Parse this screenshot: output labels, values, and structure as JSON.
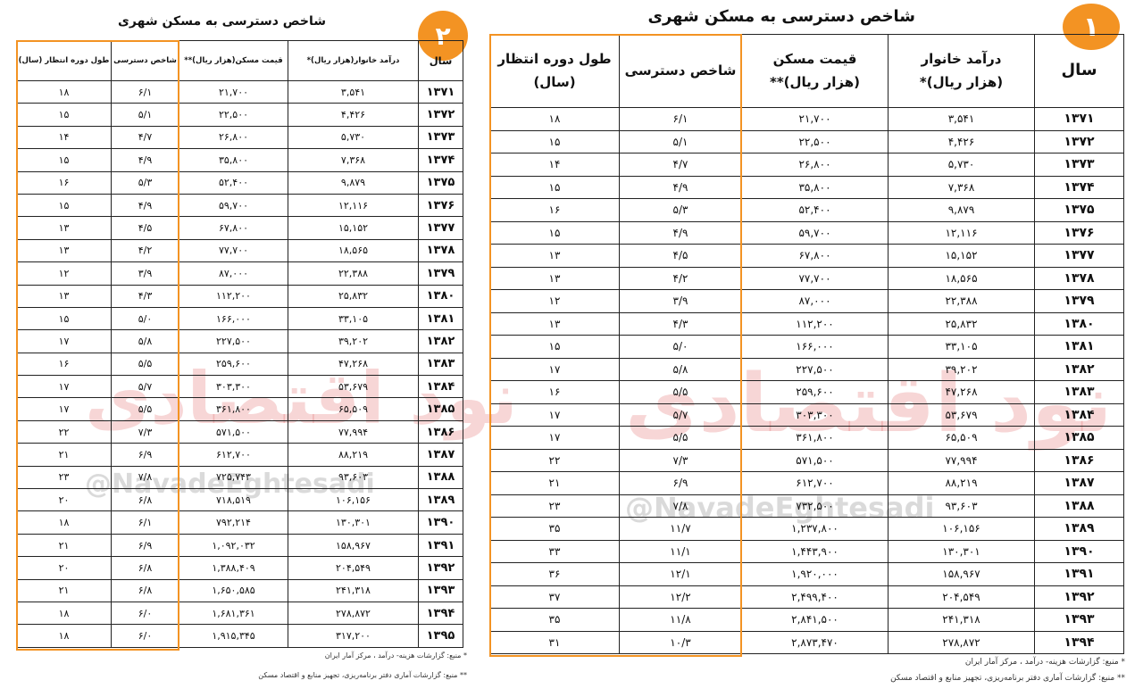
{
  "left": {
    "badge": "۲",
    "title": "شاخص دسترسی به مسکن شهری",
    "table": {
      "headers": [
        "سال",
        "درآمد خانوار(هزار ریال)*",
        "قیمت مسکن(هزار ریال)**",
        "شاخص دسترسی",
        "طول دوره انتظار (سال)"
      ],
      "rows": [
        [
          "۱۳۷۱",
          "۳,۵۴۱",
          "۲۱,۷۰۰",
          "۶/۱",
          "۱۸"
        ],
        [
          "۱۳۷۲",
          "۴,۴۲۶",
          "۲۲,۵۰۰",
          "۵/۱",
          "۱۵"
        ],
        [
          "۱۳۷۳",
          "۵,۷۳۰",
          "۲۶,۸۰۰",
          "۴/۷",
          "۱۴"
        ],
        [
          "۱۳۷۴",
          "۷,۳۶۸",
          "۳۵,۸۰۰",
          "۴/۹",
          "۱۵"
        ],
        [
          "۱۳۷۵",
          "۹,۸۷۹",
          "۵۲,۴۰۰",
          "۵/۳",
          "۱۶"
        ],
        [
          "۱۳۷۶",
          "۱۲,۱۱۶",
          "۵۹,۷۰۰",
          "۴/۹",
          "۱۵"
        ],
        [
          "۱۳۷۷",
          "۱۵,۱۵۲",
          "۶۷,۸۰۰",
          "۴/۵",
          "۱۳"
        ],
        [
          "۱۳۷۸",
          "۱۸,۵۶۵",
          "۷۷,۷۰۰",
          "۴/۲",
          "۱۳"
        ],
        [
          "۱۳۷۹",
          "۲۲,۳۸۸",
          "۸۷,۰۰۰",
          "۳/۹",
          "۱۲"
        ],
        [
          "۱۳۸۰",
          "۲۵,۸۳۲",
          "۱۱۲,۲۰۰",
          "۴/۳",
          "۱۳"
        ],
        [
          "۱۳۸۱",
          "۳۳,۱۰۵",
          "۱۶۶,۰۰۰",
          "۵/۰",
          "۱۵"
        ],
        [
          "۱۳۸۲",
          "۳۹,۲۰۲",
          "۲۲۷,۵۰۰",
          "۵/۸",
          "۱۷"
        ],
        [
          "۱۳۸۳",
          "۴۷,۲۶۸",
          "۲۵۹,۶۰۰",
          "۵/۵",
          "۱۶"
        ],
        [
          "۱۳۸۴",
          "۵۳,۶۷۹",
          "۳۰۳,۳۰۰",
          "۵/۷",
          "۱۷"
        ],
        [
          "۱۳۸۵",
          "۶۵,۵۰۹",
          "۳۶۱,۸۰۰",
          "۵/۵",
          "۱۷"
        ],
        [
          "۱۳۸۶",
          "۷۷,۹۹۴",
          "۵۷۱,۵۰۰",
          "۷/۳",
          "۲۲"
        ],
        [
          "۱۳۸۷",
          "۸۸,۲۱۹",
          "۶۱۲,۷۰۰",
          "۶/۹",
          "۲۱"
        ],
        [
          "۱۳۸۸",
          "۹۳,۶۰۳",
          "۷۲۵,۷۴۳",
          "۷/۸",
          "۲۳"
        ],
        [
          "۱۳۸۹",
          "۱۰۶,۱۵۶",
          "۷۱۸,۵۱۹",
          "۶/۸",
          "۲۰"
        ],
        [
          "۱۳۹۰",
          "۱۳۰,۳۰۱",
          "۷۹۲,۲۱۴",
          "۶/۱",
          "۱۸"
        ],
        [
          "۱۳۹۱",
          "۱۵۸,۹۶۷",
          "۱,۰۹۲,۰۳۲",
          "۶/۹",
          "۲۱"
        ],
        [
          "۱۳۹۲",
          "۲۰۴,۵۴۹",
          "۱,۳۸۸,۴۰۹",
          "۶/۸",
          "۲۰"
        ],
        [
          "۱۳۹۳",
          "۲۴۱,۳۱۸",
          "۱,۶۵۰,۵۸۵",
          "۶/۸",
          "۲۱"
        ],
        [
          "۱۳۹۴",
          "۲۷۸,۸۷۲",
          "۱,۶۸۱,۳۶۱",
          "۶/۰",
          "۱۸"
        ],
        [
          "۱۳۹۵",
          "۳۱۷,۲۰۰",
          "۱,۹۱۵,۳۴۵",
          "۶/۰",
          "۱۸"
        ]
      ]
    },
    "notes": [
      "* منبع: گزارشات هزینه- درآمد ، مرکز آمار ایران",
      "** منبع: گزارشات آماری دفتر برنامه‌ریزی، تجهیز منابع و اقتصاد مسکن"
    ],
    "watermark": "@NavadeEghtesadi",
    "logo": "نود اقتصادی"
  },
  "right": {
    "badge": "۱",
    "title": "شاخص دسترسی به مسکن شهری",
    "table": {
      "headers": [
        [
          "سال"
        ],
        [
          "درآمد خانوار",
          "(هزار ریال)*"
        ],
        [
          "قیمت مسکن",
          "(هزار ریال)**"
        ],
        [
          "شاخص دسترسی"
        ],
        [
          "طول دوره انتظار",
          "(سال)"
        ]
      ],
      "rows": [
        [
          "۱۳۷۱",
          "۳,۵۴۱",
          "۲۱,۷۰۰",
          "۶/۱",
          "۱۸"
        ],
        [
          "۱۳۷۲",
          "۴,۴۲۶",
          "۲۲,۵۰۰",
          "۵/۱",
          "۱۵"
        ],
        [
          "۱۳۷۳",
          "۵,۷۳۰",
          "۲۶,۸۰۰",
          "۴/۷",
          "۱۴"
        ],
        [
          "۱۳۷۴",
          "۷,۳۶۸",
          "۳۵,۸۰۰",
          "۴/۹",
          "۱۵"
        ],
        [
          "۱۳۷۵",
          "۹,۸۷۹",
          "۵۲,۴۰۰",
          "۵/۳",
          "۱۶"
        ],
        [
          "۱۳۷۶",
          "۱۲,۱۱۶",
          "۵۹,۷۰۰",
          "۴/۹",
          "۱۵"
        ],
        [
          "۱۳۷۷",
          "۱۵,۱۵۲",
          "۶۷,۸۰۰",
          "۴/۵",
          "۱۳"
        ],
        [
          "۱۳۷۸",
          "۱۸,۵۶۵",
          "۷۷,۷۰۰",
          "۴/۲",
          "۱۳"
        ],
        [
          "۱۳۷۹",
          "۲۲,۳۸۸",
          "۸۷,۰۰۰",
          "۳/۹",
          "۱۲"
        ],
        [
          "۱۳۸۰",
          "۲۵,۸۳۲",
          "۱۱۲,۲۰۰",
          "۴/۳",
          "۱۳"
        ],
        [
          "۱۳۸۱",
          "۳۳,۱۰۵",
          "۱۶۶,۰۰۰",
          "۵/۰",
          "۱۵"
        ],
        [
          "۱۳۸۲",
          "۳۹,۲۰۲",
          "۲۲۷,۵۰۰",
          "۵/۸",
          "۱۷"
        ],
        [
          "۱۳۸۳",
          "۴۷,۲۶۸",
          "۲۵۹,۶۰۰",
          "۵/۵",
          "۱۶"
        ],
        [
          "۱۳۸۴",
          "۵۳,۶۷۹",
          "۳۰۳,۳۰۰",
          "۵/۷",
          "۱۷"
        ],
        [
          "۱۳۸۵",
          "۶۵,۵۰۹",
          "۳۶۱,۸۰۰",
          "۵/۵",
          "۱۷"
        ],
        [
          "۱۳۸۶",
          "۷۷,۹۹۴",
          "۵۷۱,۵۰۰",
          "۷/۳",
          "۲۲"
        ],
        [
          "۱۳۸۷",
          "۸۸,۲۱۹",
          "۶۱۲,۷۰۰",
          "۶/۹",
          "۲۱"
        ],
        [
          "۱۳۸۸",
          "۹۳,۶۰۳",
          "۷۳۲,۵۰۰",
          "۷/۸",
          "۲۳"
        ],
        [
          "۱۳۸۹",
          "۱۰۶,۱۵۶",
          "۱,۲۳۷,۸۰۰",
          "۱۱/۷",
          "۳۵"
        ],
        [
          "۱۳۹۰",
          "۱۳۰,۳۰۱",
          "۱,۴۴۳,۹۰۰",
          "۱۱/۱",
          "۳۳"
        ],
        [
          "۱۳۹۱",
          "۱۵۸,۹۶۷",
          "۱,۹۲۰,۰۰۰",
          "۱۲/۱",
          "۳۶"
        ],
        [
          "۱۳۹۲",
          "۲۰۴,۵۴۹",
          "۲,۴۹۹,۴۰۰",
          "۱۲/۲",
          "۳۷"
        ],
        [
          "۱۳۹۳",
          "۲۴۱,۳۱۸",
          "۲,۸۴۱,۵۰۰",
          "۱۱/۸",
          "۳۵"
        ],
        [
          "۱۳۹۴",
          "۲۷۸,۸۷۲",
          "۲,۸۷۳,۴۷۰",
          "۱۰/۳",
          "۳۱"
        ]
      ]
    },
    "notes": [
      "* منبع: گزارشات هزینه- درآمد ، مرکز آمار ایران",
      "** منبع: گزارشات آماری دفتر برنامه‌ریزی، تجهیز منابع و اقتصاد مسکن"
    ],
    "watermark": "@NavadeEghtesadi",
    "logo": "نود اقتصادی"
  }
}
